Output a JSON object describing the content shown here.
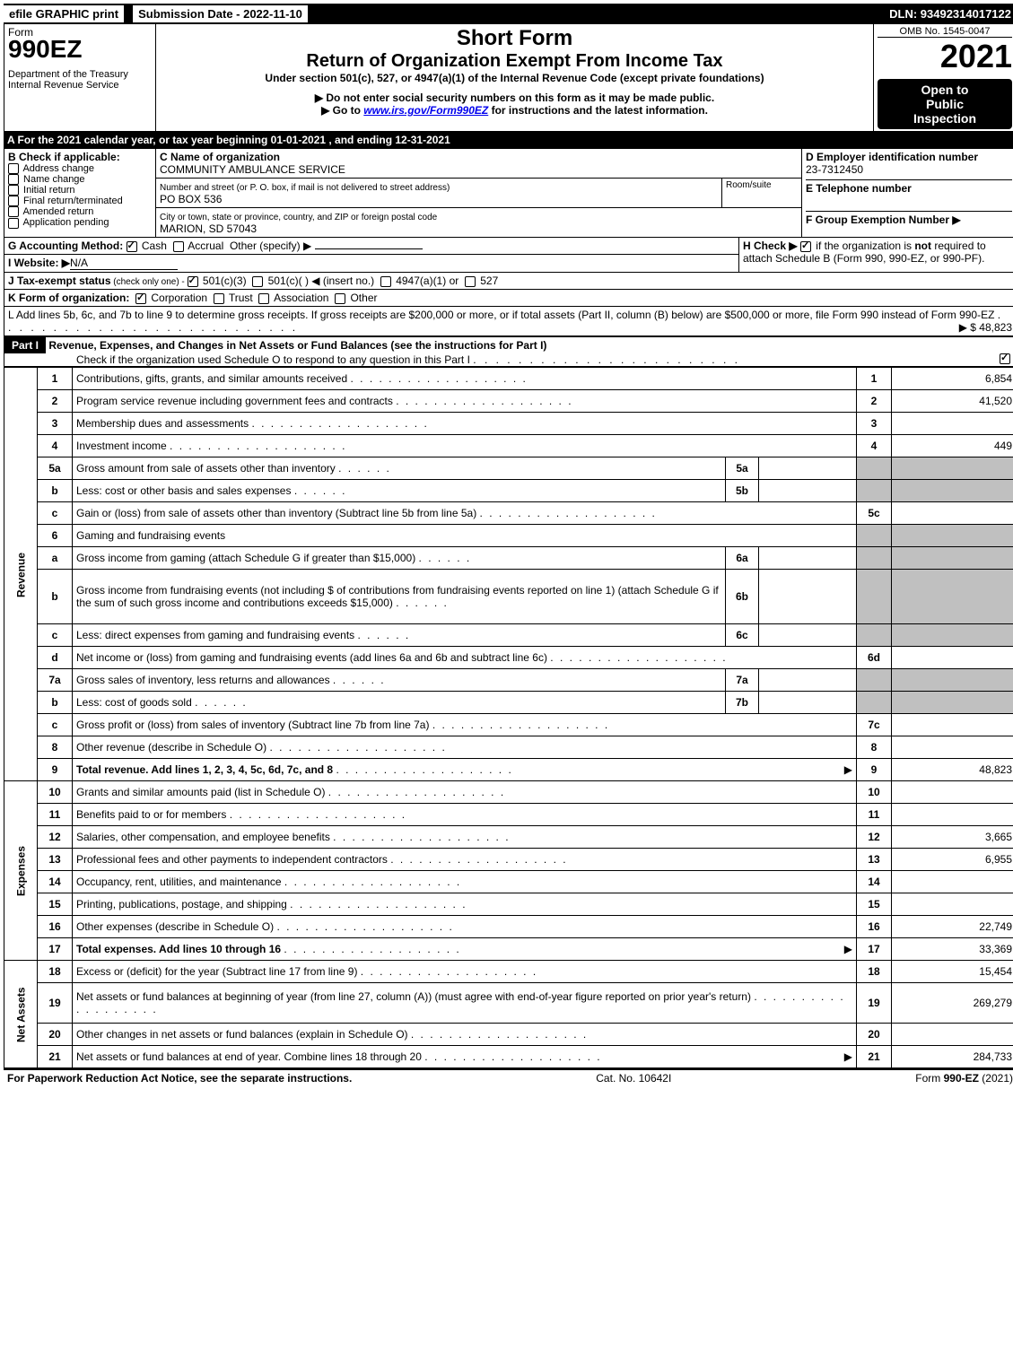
{
  "topbar": {
    "efile": "efile GRAPHIC print",
    "submission_label": "Submission Date - 2022-11-10",
    "dln": "DLN: 93492314017122"
  },
  "header": {
    "form_word": "Form",
    "form_no": "990EZ",
    "dept": "Department of the Treasury",
    "irs": "Internal Revenue Service",
    "short_form": "Short Form",
    "return_title": "Return of Organization Exempt From Income Tax",
    "under_section": "Under section 501(c), 527, or 4947(a)(1) of the Internal Revenue Code (except private foundations)",
    "no_ssn": "▶ Do not enter social security numbers on this form as it may be made public.",
    "goto": "▶ Go to ",
    "goto_link": "www.irs.gov/Form990EZ",
    "goto_rest": " for instructions and the latest information.",
    "omb": "OMB No. 1545-0047",
    "year": "2021",
    "open1": "Open to",
    "open2": "Public",
    "open3": "Inspection"
  },
  "line_a": "A  For the 2021 calendar year, or tax year beginning 01-01-2021 , and ending 12-31-2021",
  "section_b": {
    "title": "B  Check if applicable:",
    "opts": [
      "Address change",
      "Name change",
      "Initial return",
      "Final return/terminated",
      "Amended return",
      "Application pending"
    ]
  },
  "section_c": {
    "c_label": "C Name of organization",
    "org_name": "COMMUNITY AMBULANCE SERVICE",
    "addr_label": "Number and street (or P. O. box, if mail is not delivered to street address)",
    "addr": "PO BOX 536",
    "room_label": "Room/suite",
    "city_label": "City or town, state or province, country, and ZIP or foreign postal code",
    "city": "MARION, SD  57043"
  },
  "section_d": {
    "d_label": "D Employer identification number",
    "ein": "23-7312450",
    "e_label": "E Telephone number",
    "f_label": "F Group Exemption Number  ▶"
  },
  "line_g": {
    "label": "G Accounting Method:",
    "cash": "Cash",
    "accrual": "Accrual",
    "other": "Other (specify) ▶"
  },
  "line_h": {
    "label": "H  Check ▶",
    "text": "if the organization is ",
    "not": "not",
    "rest": " required to attach Schedule B (Form 990, 990-EZ, or 990-PF)."
  },
  "line_i": {
    "label": "I Website: ▶",
    "val": "N/A"
  },
  "line_j": {
    "label": "J Tax-exempt status",
    "small": " (check only one) - ",
    "o1": "501(c)(3)",
    "o2": "501(c)(  ) ◀ (insert no.)",
    "o3": "4947(a)(1) or",
    "o4": "527"
  },
  "line_k": {
    "label": "K Form of organization:",
    "opts": [
      "Corporation",
      "Trust",
      "Association",
      "Other"
    ]
  },
  "line_l": {
    "text": "L Add lines 5b, 6c, and 7b to line 9 to determine gross receipts. If gross receipts are $200,000 or more, or if total assets (Part II, column (B) below) are $500,000 or more, file Form 990 instead of Form 990-EZ",
    "amount": "▶ $ 48,823"
  },
  "part1": {
    "badge": "Part I",
    "title": "Revenue, Expenses, and Changes in Net Assets or Fund Balances (see the instructions for Part I)",
    "check_text": "Check if the organization used Schedule O to respond to any question in this Part I"
  },
  "vert": {
    "revenue": "Revenue",
    "expenses": "Expenses",
    "netassets": "Net Assets"
  },
  "lines": [
    {
      "n": "1",
      "label": "Contributions, gifts, grants, and similar amounts received",
      "rn": "1",
      "rv": "6,854"
    },
    {
      "n": "2",
      "label": "Program service revenue including government fees and contracts",
      "rn": "2",
      "rv": "41,520"
    },
    {
      "n": "3",
      "label": "Membership dues and assessments",
      "rn": "3",
      "rv": ""
    },
    {
      "n": "4",
      "label": "Investment income",
      "rn": "4",
      "rv": "449"
    },
    {
      "n": "5a",
      "label": "Gross amount from sale of assets other than inventory",
      "mn": "5a",
      "mv": "",
      "shade": true
    },
    {
      "n": "b",
      "label": "Less: cost or other basis and sales expenses",
      "mn": "5b",
      "mv": "",
      "shade": true
    },
    {
      "n": "c",
      "label": "Gain or (loss) from sale of assets other than inventory (Subtract line 5b from line 5a)",
      "rn": "5c",
      "rv": ""
    },
    {
      "n": "6",
      "label": "Gaming and fundraising events",
      "shade": true,
      "noval": true
    },
    {
      "n": "a",
      "label": "Gross income from gaming (attach Schedule G if greater than $15,000)",
      "mn": "6a",
      "mv": "",
      "shade": true
    },
    {
      "n": "b",
      "label": "Gross income from fundraising events (not including $                       of contributions from fundraising events reported on line 1) (attach Schedule G if the sum of such gross income and contributions exceeds $15,000)",
      "mn": "6b",
      "mv": "",
      "shade": true,
      "tall": true
    },
    {
      "n": "c",
      "label": "Less: direct expenses from gaming and fundraising events",
      "mn": "6c",
      "mv": "",
      "shade": true
    },
    {
      "n": "d",
      "label": "Net income or (loss) from gaming and fundraising events (add lines 6a and 6b and subtract line 6c)",
      "rn": "6d",
      "rv": ""
    },
    {
      "n": "7a",
      "label": "Gross sales of inventory, less returns and allowances",
      "mn": "7a",
      "mv": "",
      "shade": true
    },
    {
      "n": "b",
      "label": "Less: cost of goods sold",
      "mn": "7b",
      "mv": "",
      "shade": true
    },
    {
      "n": "c",
      "label": "Gross profit or (loss) from sales of inventory (Subtract line 7b from line 7a)",
      "rn": "7c",
      "rv": ""
    },
    {
      "n": "8",
      "label": "Other revenue (describe in Schedule O)",
      "rn": "8",
      "rv": ""
    },
    {
      "n": "9",
      "label": "Total revenue. Add lines 1, 2, 3, 4, 5c, 6d, 7c, and 8",
      "rn": "9",
      "rv": "48,823",
      "bold": true,
      "arrow": true
    }
  ],
  "exp_lines": [
    {
      "n": "10",
      "label": "Grants and similar amounts paid (list in Schedule O)",
      "rn": "10",
      "rv": ""
    },
    {
      "n": "11",
      "label": "Benefits paid to or for members",
      "rn": "11",
      "rv": ""
    },
    {
      "n": "12",
      "label": "Salaries, other compensation, and employee benefits",
      "rn": "12",
      "rv": "3,665"
    },
    {
      "n": "13",
      "label": "Professional fees and other payments to independent contractors",
      "rn": "13",
      "rv": "6,955"
    },
    {
      "n": "14",
      "label": "Occupancy, rent, utilities, and maintenance",
      "rn": "14",
      "rv": ""
    },
    {
      "n": "15",
      "label": "Printing, publications, postage, and shipping",
      "rn": "15",
      "rv": ""
    },
    {
      "n": "16",
      "label": "Other expenses (describe in Schedule O)",
      "rn": "16",
      "rv": "22,749"
    },
    {
      "n": "17",
      "label": "Total expenses. Add lines 10 through 16",
      "rn": "17",
      "rv": "33,369",
      "bold": true,
      "arrow": true
    }
  ],
  "na_lines": [
    {
      "n": "18",
      "label": "Excess or (deficit) for the year (Subtract line 17 from line 9)",
      "rn": "18",
      "rv": "15,454"
    },
    {
      "n": "19",
      "label": "Net assets or fund balances at beginning of year (from line 27, column (A)) (must agree with end-of-year figure reported on prior year's return)",
      "rn": "19",
      "rv": "269,279",
      "tall": true
    },
    {
      "n": "20",
      "label": "Other changes in net assets or fund balances (explain in Schedule O)",
      "rn": "20",
      "rv": ""
    },
    {
      "n": "21",
      "label": "Net assets or fund balances at end of year. Combine lines 18 through 20",
      "rn": "21",
      "rv": "284,733",
      "arrow": true
    }
  ],
  "footer": {
    "left": "For Paperwork Reduction Act Notice, see the separate instructions.",
    "mid": "Cat. No. 10642I",
    "right_pre": "Form ",
    "right_form": "990-EZ",
    "right_post": " (2021)"
  }
}
